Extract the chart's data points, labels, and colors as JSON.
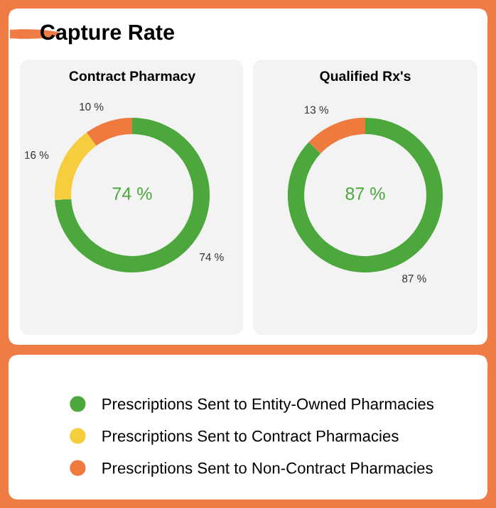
{
  "chart_data": [
    {
      "type": "other",
      "title": "Capture Rate"
    },
    {
      "type": "donut",
      "title": "Contract Pharmacy",
      "categories": [
        "Prescriptions Sent to Entity-Owned Pharmacies",
        "Prescriptions Sent to Contract Pharmacies",
        "Prescriptions Sent to Non-Contract Pharmacies"
      ],
      "values": [
        74,
        16,
        10
      ],
      "colors": [
        "#4ca83c",
        "#f6cd3c",
        "#ee7a3e"
      ],
      "value_labels": [
        "74 %",
        "16 %",
        "10 %"
      ],
      "annotations": [
        "74 %"
      ],
      "legend": "bottom"
    },
    {
      "type": "donut",
      "title": "Qualified Rx's",
      "categories": [
        null,
        null
      ],
      "values": [
        87,
        13
      ],
      "colors": [
        "#4ca83c",
        "#ee7a3e"
      ],
      "value_labels": [
        "87 %",
        "13 %"
      ],
      "annotations": [
        "87 %"
      ]
    }
  ]
}
